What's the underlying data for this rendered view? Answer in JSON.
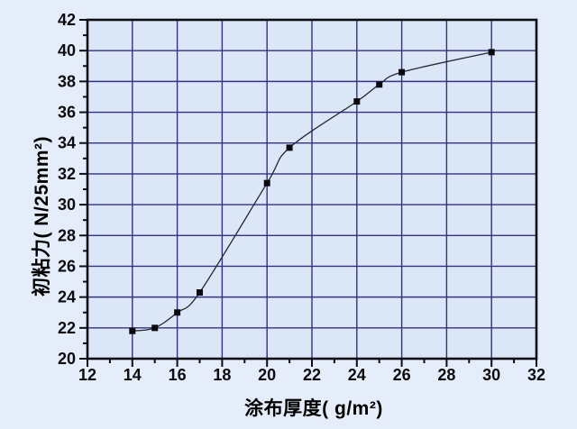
{
  "chart_data": {
    "type": "line",
    "title": "",
    "xlabel": "涂布厚度( g/m²)",
    "ylabel": "初粘力( N/25mm²)",
    "x": [
      14,
      15,
      16,
      17,
      20,
      21,
      24,
      25,
      26,
      30
    ],
    "y": [
      21.8,
      22.0,
      23.0,
      24.3,
      31.4,
      33.7,
      36.7,
      37.8,
      38.6,
      39.9
    ],
    "xlim": [
      12,
      32
    ],
    "ylim": [
      20,
      42
    ],
    "x_major_ticks": [
      12,
      14,
      16,
      18,
      20,
      22,
      24,
      26,
      28,
      30,
      32
    ],
    "x_minor_ticks": [
      13,
      15,
      17,
      19,
      21,
      23,
      25,
      27,
      29,
      31
    ],
    "y_major_ticks": [
      20,
      22,
      24,
      26,
      28,
      30,
      32,
      34,
      36,
      38,
      40,
      42
    ],
    "y_minor_ticks": [
      21,
      23,
      25,
      27,
      29,
      31,
      33,
      35,
      37,
      39,
      41
    ],
    "grid": true,
    "legend": "none",
    "marker": "square",
    "line_style": "smooth-spline",
    "colors": {
      "background": "#e6edfa",
      "plot_background": "#dbe6f7",
      "grid": "#32327e",
      "axis": "#0d0d14",
      "line": "#232733",
      "marker": "#0a0a0e",
      "text": "#0b0b0d"
    }
  }
}
